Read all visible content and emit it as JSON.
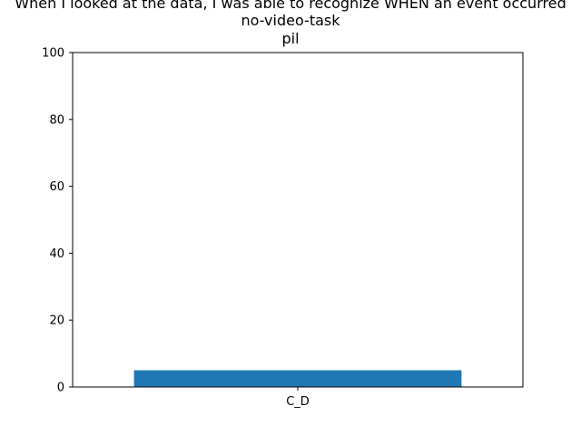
{
  "chart_data": {
    "type": "bar",
    "title_lines": [
      "When I looked at the data, I was able to recognize WHEN an event occurred",
      "no-video-task",
      "pil"
    ],
    "categories": [
      "C_D"
    ],
    "values": [
      5
    ],
    "xlabel": "",
    "ylabel": "",
    "ylim": [
      0,
      100
    ],
    "yticks": [
      "0",
      "20",
      "40",
      "60",
      "80",
      "100"
    ],
    "grid": false,
    "legend": "none",
    "bar_color": "#1f77b4"
  }
}
